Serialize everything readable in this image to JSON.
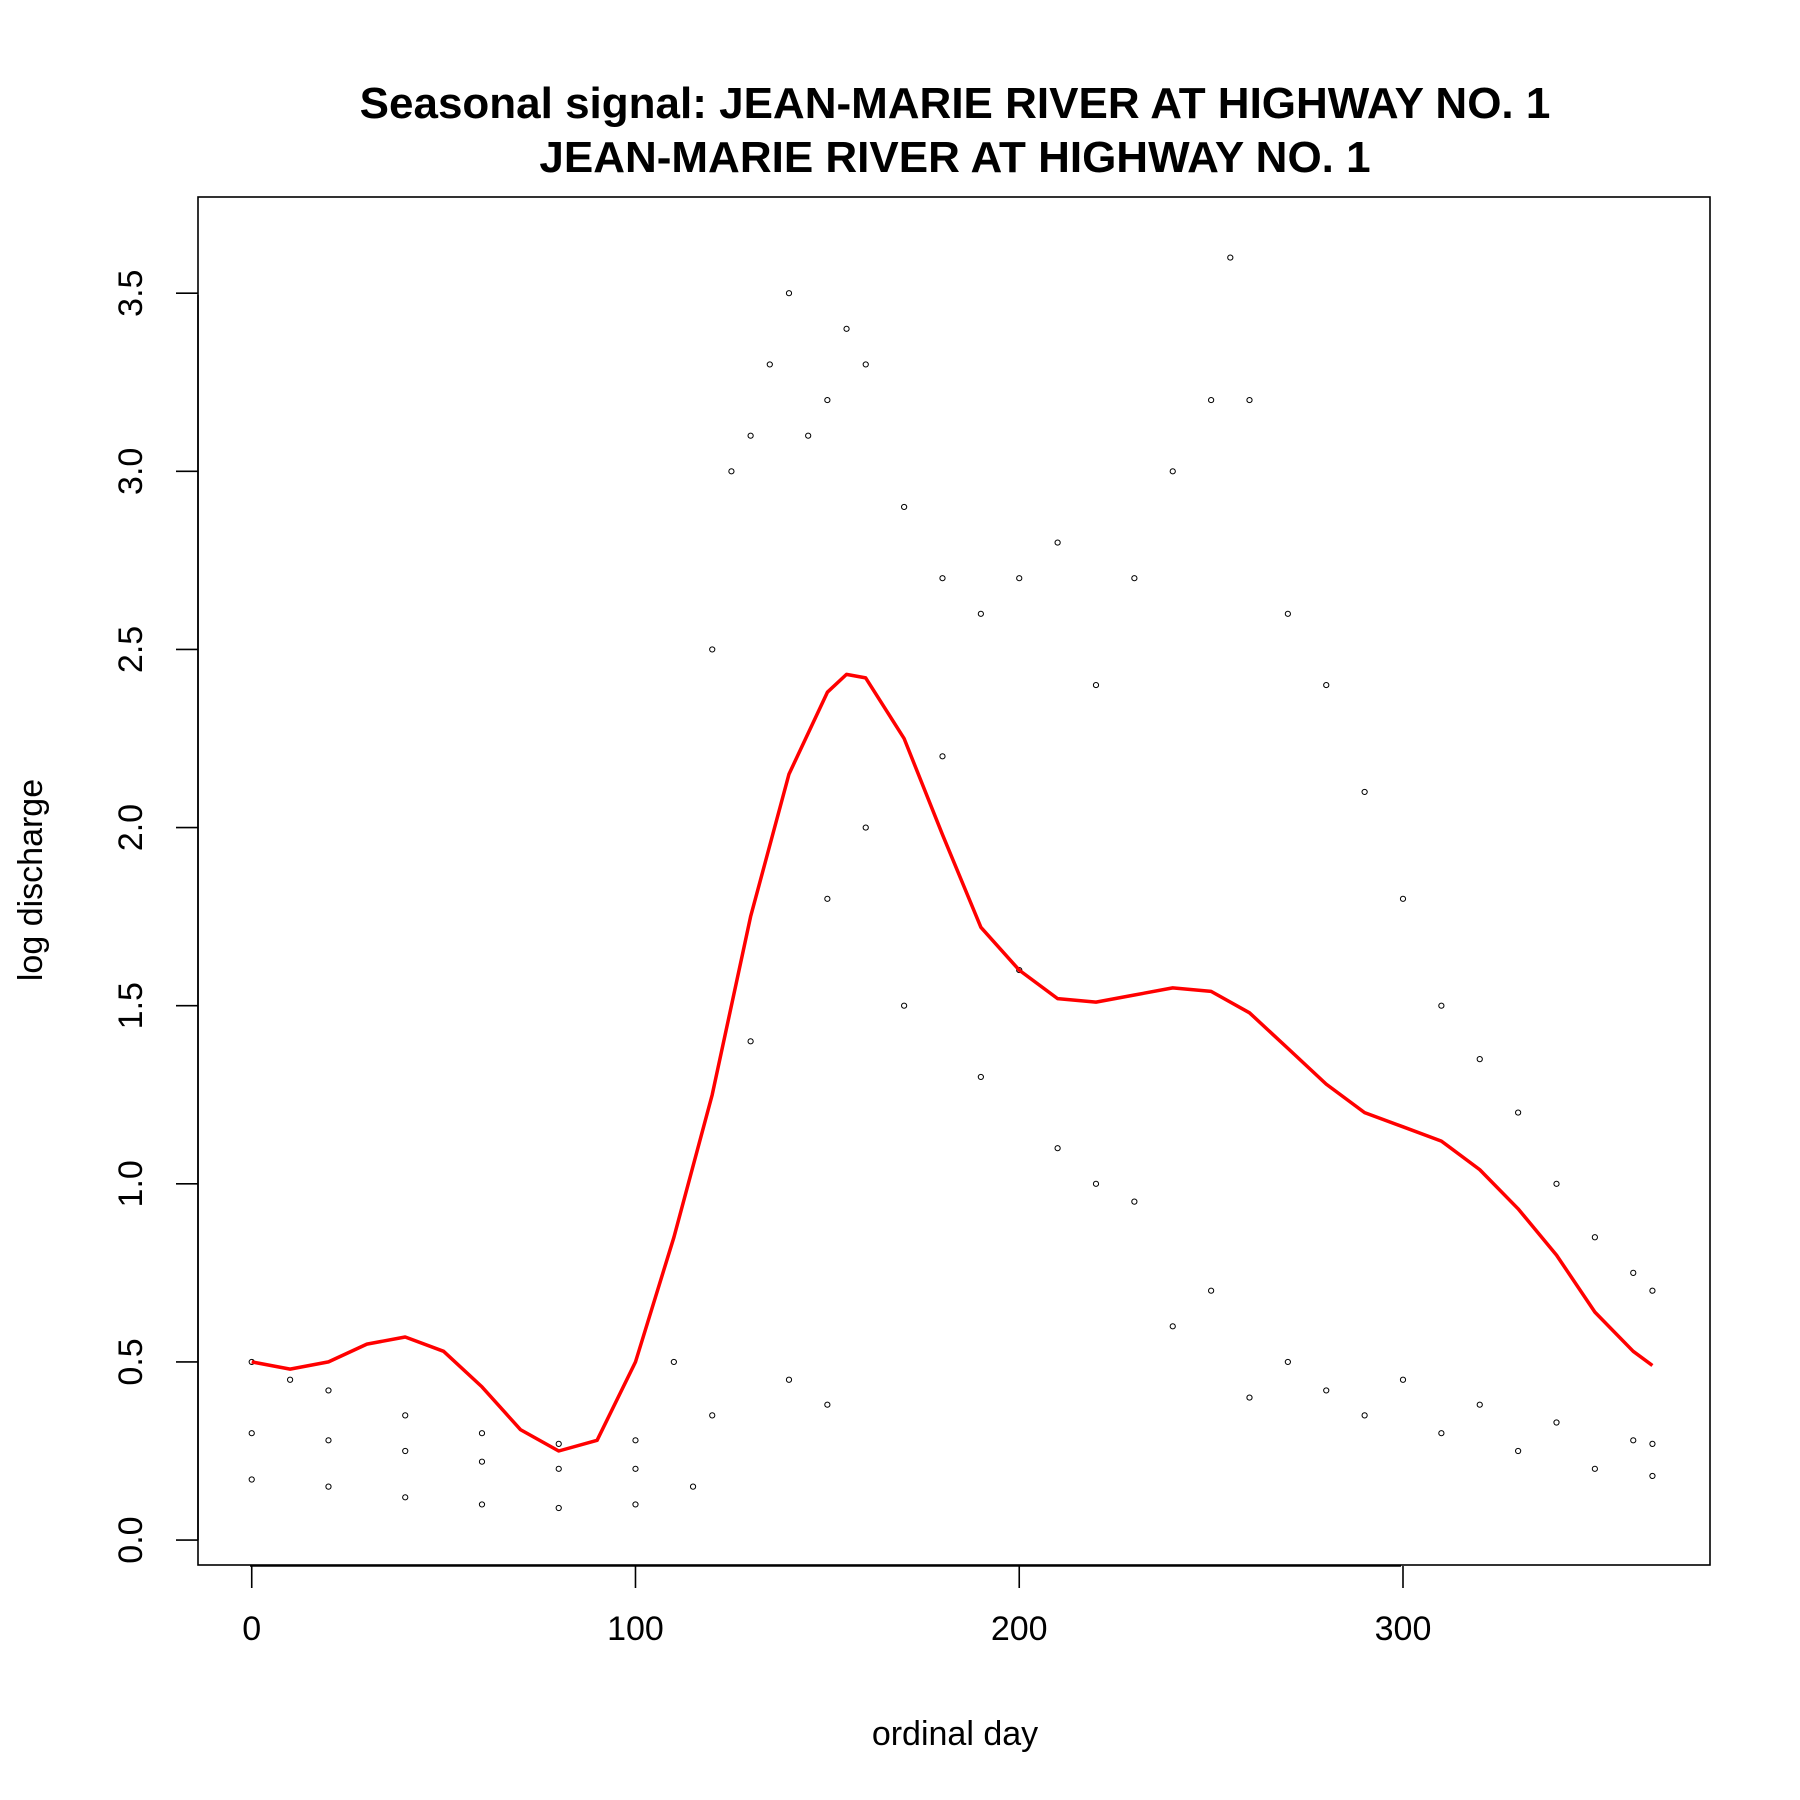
{
  "chart_data": {
    "type": "scatter",
    "title": "Seasonal signal: JEAN-MARIE RIVER AT HIGHWAY NO. 1",
    "subtitle": "JEAN-MARIE RIVER AT HIGHWAY NO. 1",
    "xlabel": "ordinal day",
    "ylabel": "log discharge",
    "xlim": [
      -14,
      380
    ],
    "ylim": [
      -0.07,
      3.77
    ],
    "x_ticks": [
      0,
      100,
      200,
      300
    ],
    "x_tick_labels": [
      "0",
      "100",
      "200",
      "300"
    ],
    "y_ticks": [
      0.0,
      0.5,
      1.0,
      1.5,
      2.0,
      2.5,
      3.0,
      3.5
    ],
    "y_tick_labels": [
      "0.0",
      "0.5",
      "1.0",
      "1.5",
      "2.0",
      "2.5",
      "3.0",
      "3.5"
    ],
    "grid": false,
    "legend": "none",
    "colors": {
      "points": "#000000",
      "smooth": "#ff0000"
    },
    "series": [
      {
        "kind": "points",
        "x": [
          0,
          10,
          20,
          40,
          60,
          80,
          100,
          110,
          120,
          125,
          130,
          135,
          140,
          145,
          150,
          155,
          160,
          170,
          180,
          190,
          200,
          210,
          220,
          230,
          240,
          250,
          255,
          260,
          270,
          280,
          290,
          300,
          310,
          320,
          330,
          340,
          350,
          360,
          365
        ],
        "y": [
          0.5,
          0.45,
          0.42,
          0.35,
          0.3,
          0.27,
          0.28,
          0.5,
          2.5,
          3.0,
          3.1,
          3.3,
          3.5,
          3.1,
          3.2,
          3.4,
          3.3,
          2.9,
          2.7,
          2.6,
          2.7,
          2.8,
          2.4,
          2.7,
          3.0,
          3.2,
          3.6,
          3.2,
          2.6,
          2.4,
          2.1,
          1.8,
          1.5,
          1.35,
          1.2,
          1.0,
          0.85,
          0.75,
          0.7
        ]
      },
      {
        "kind": "points",
        "x": [
          0,
          20,
          40,
          60,
          80,
          100,
          115,
          130,
          150,
          170,
          190,
          210,
          230,
          250,
          270,
          290,
          310,
          330,
          350,
          365
        ],
        "y": [
          0.17,
          0.15,
          0.12,
          0.1,
          0.09,
          0.1,
          0.15,
          1.4,
          1.8,
          1.5,
          1.3,
          1.1,
          0.95,
          0.7,
          0.5,
          0.35,
          0.3,
          0.25,
          0.2,
          0.18
        ]
      },
      {
        "kind": "points",
        "x": [
          0,
          20,
          40,
          60,
          80,
          100,
          120,
          140,
          150,
          160,
          180,
          200,
          220,
          240,
          260,
          280,
          300,
          320,
          340,
          360,
          365
        ],
        "y": [
          0.3,
          0.28,
          0.25,
          0.22,
          0.2,
          0.2,
          0.35,
          0.45,
          0.38,
          2.0,
          2.2,
          1.6,
          1.0,
          0.6,
          0.4,
          0.42,
          0.45,
          0.38,
          0.33,
          0.28,
          0.27
        ]
      },
      {
        "kind": "smooth",
        "x": [
          0,
          10,
          20,
          30,
          40,
          50,
          60,
          70,
          80,
          90,
          100,
          110,
          120,
          130,
          140,
          150,
          155,
          160,
          170,
          180,
          190,
          200,
          210,
          220,
          230,
          240,
          250,
          260,
          270,
          280,
          290,
          300,
          310,
          320,
          330,
          340,
          350,
          360,
          365
        ],
        "y": [
          0.5,
          0.48,
          0.5,
          0.55,
          0.57,
          0.53,
          0.43,
          0.31,
          0.25,
          0.28,
          0.5,
          0.85,
          1.25,
          1.75,
          2.15,
          2.38,
          2.43,
          2.42,
          2.25,
          1.98,
          1.72,
          1.6,
          1.52,
          1.51,
          1.53,
          1.55,
          1.54,
          1.48,
          1.38,
          1.28,
          1.2,
          1.16,
          1.12,
          1.04,
          0.93,
          0.8,
          0.64,
          0.53,
          0.49
        ]
      }
    ]
  }
}
